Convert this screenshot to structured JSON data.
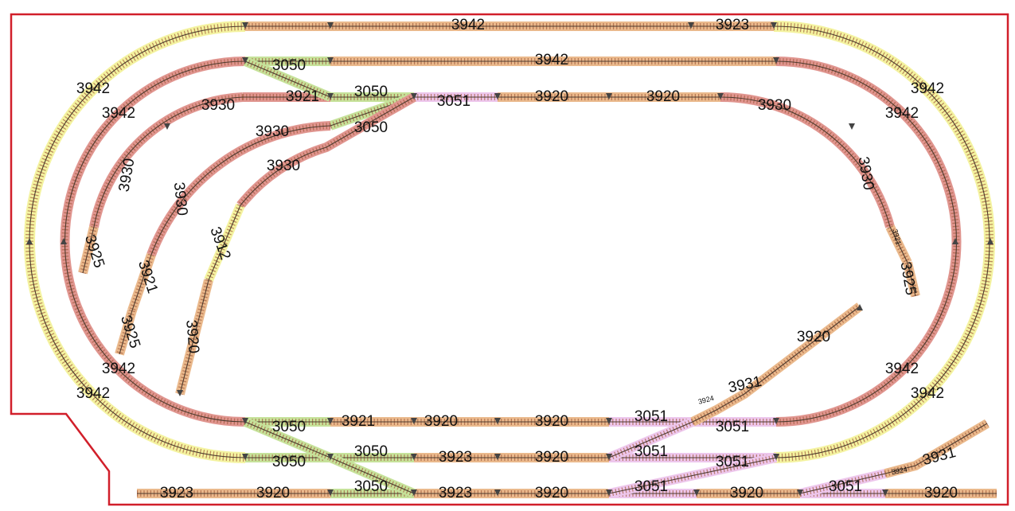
{
  "diagram": {
    "colors": {
      "border": "#d11f2a",
      "yellow": "#f4f3a0",
      "red": "#e0958f",
      "orange": "#eab98c",
      "green": "#c6e29a",
      "pink": "#edc6ec",
      "rail": "#4d3b2f",
      "tie": "#a05a3a"
    },
    "labels": {
      "outer_top_1": "3942",
      "outer_top_2": "3923",
      "second_top": "3942",
      "outer_left_top": "3942",
      "second_left_top": "3942",
      "outer_right_top": "3942",
      "second_right_top": "3942",
      "outer_left_bottom": "3942",
      "second_left_bottom": "3942",
      "outer_right_bottom": "3942",
      "second_right_bottom": "3942",
      "sw_3050_a": "3050",
      "sw_3050_b": "3050",
      "sw_3050_c": "3050",
      "sw_3050_d": "3050",
      "sw_3050_e": "3050",
      "sw_3050_f": "3050",
      "sw_3050_g": "3050",
      "inner_3921_top": "3921",
      "inner_3930_top": "3930",
      "inner_3930_mid": "3930",
      "inner_3930_low": "3930",
      "sw_3051_top": "3051",
      "top_3920_a": "3920",
      "top_3920_b": "3920",
      "right_3930": "3930",
      "right_3930_v": "3930",
      "right_3925": "3925",
      "right_3921_small": "3921",
      "left_3930_v": "3930",
      "left_3925_v": "3925",
      "left2_3930_v": "3930",
      "left2_3921_v": "3921",
      "left2_3925_v": "3925",
      "left3_3912_v": "3912",
      "left3_3920_v": "3920",
      "bot1_3921": "3921",
      "bot1_3920_a": "3920",
      "bot1_3920_b": "3920",
      "bot1_3051_a": "3051",
      "bot1_3051_b": "3051",
      "bot2_3923": "3923",
      "bot2_3920": "3920",
      "bot2_3051_a": "3051",
      "bot2_3051_b": "3051",
      "bot3_3923_a": "3923",
      "bot3_3920_a": "3920",
      "bot3_3923_b": "3923",
      "bot3_3920_b": "3920",
      "bot3_3051_a": "3051",
      "bot3_3920_c": "3920",
      "bot3_3051_b": "3051",
      "bot3_3920_d": "3920",
      "diag_3931_a": "3931",
      "diag_3920": "3920",
      "diag_3924_small": "3924",
      "diag_3931_b": "3931",
      "diag_3924_small_b": "3924"
    }
  }
}
